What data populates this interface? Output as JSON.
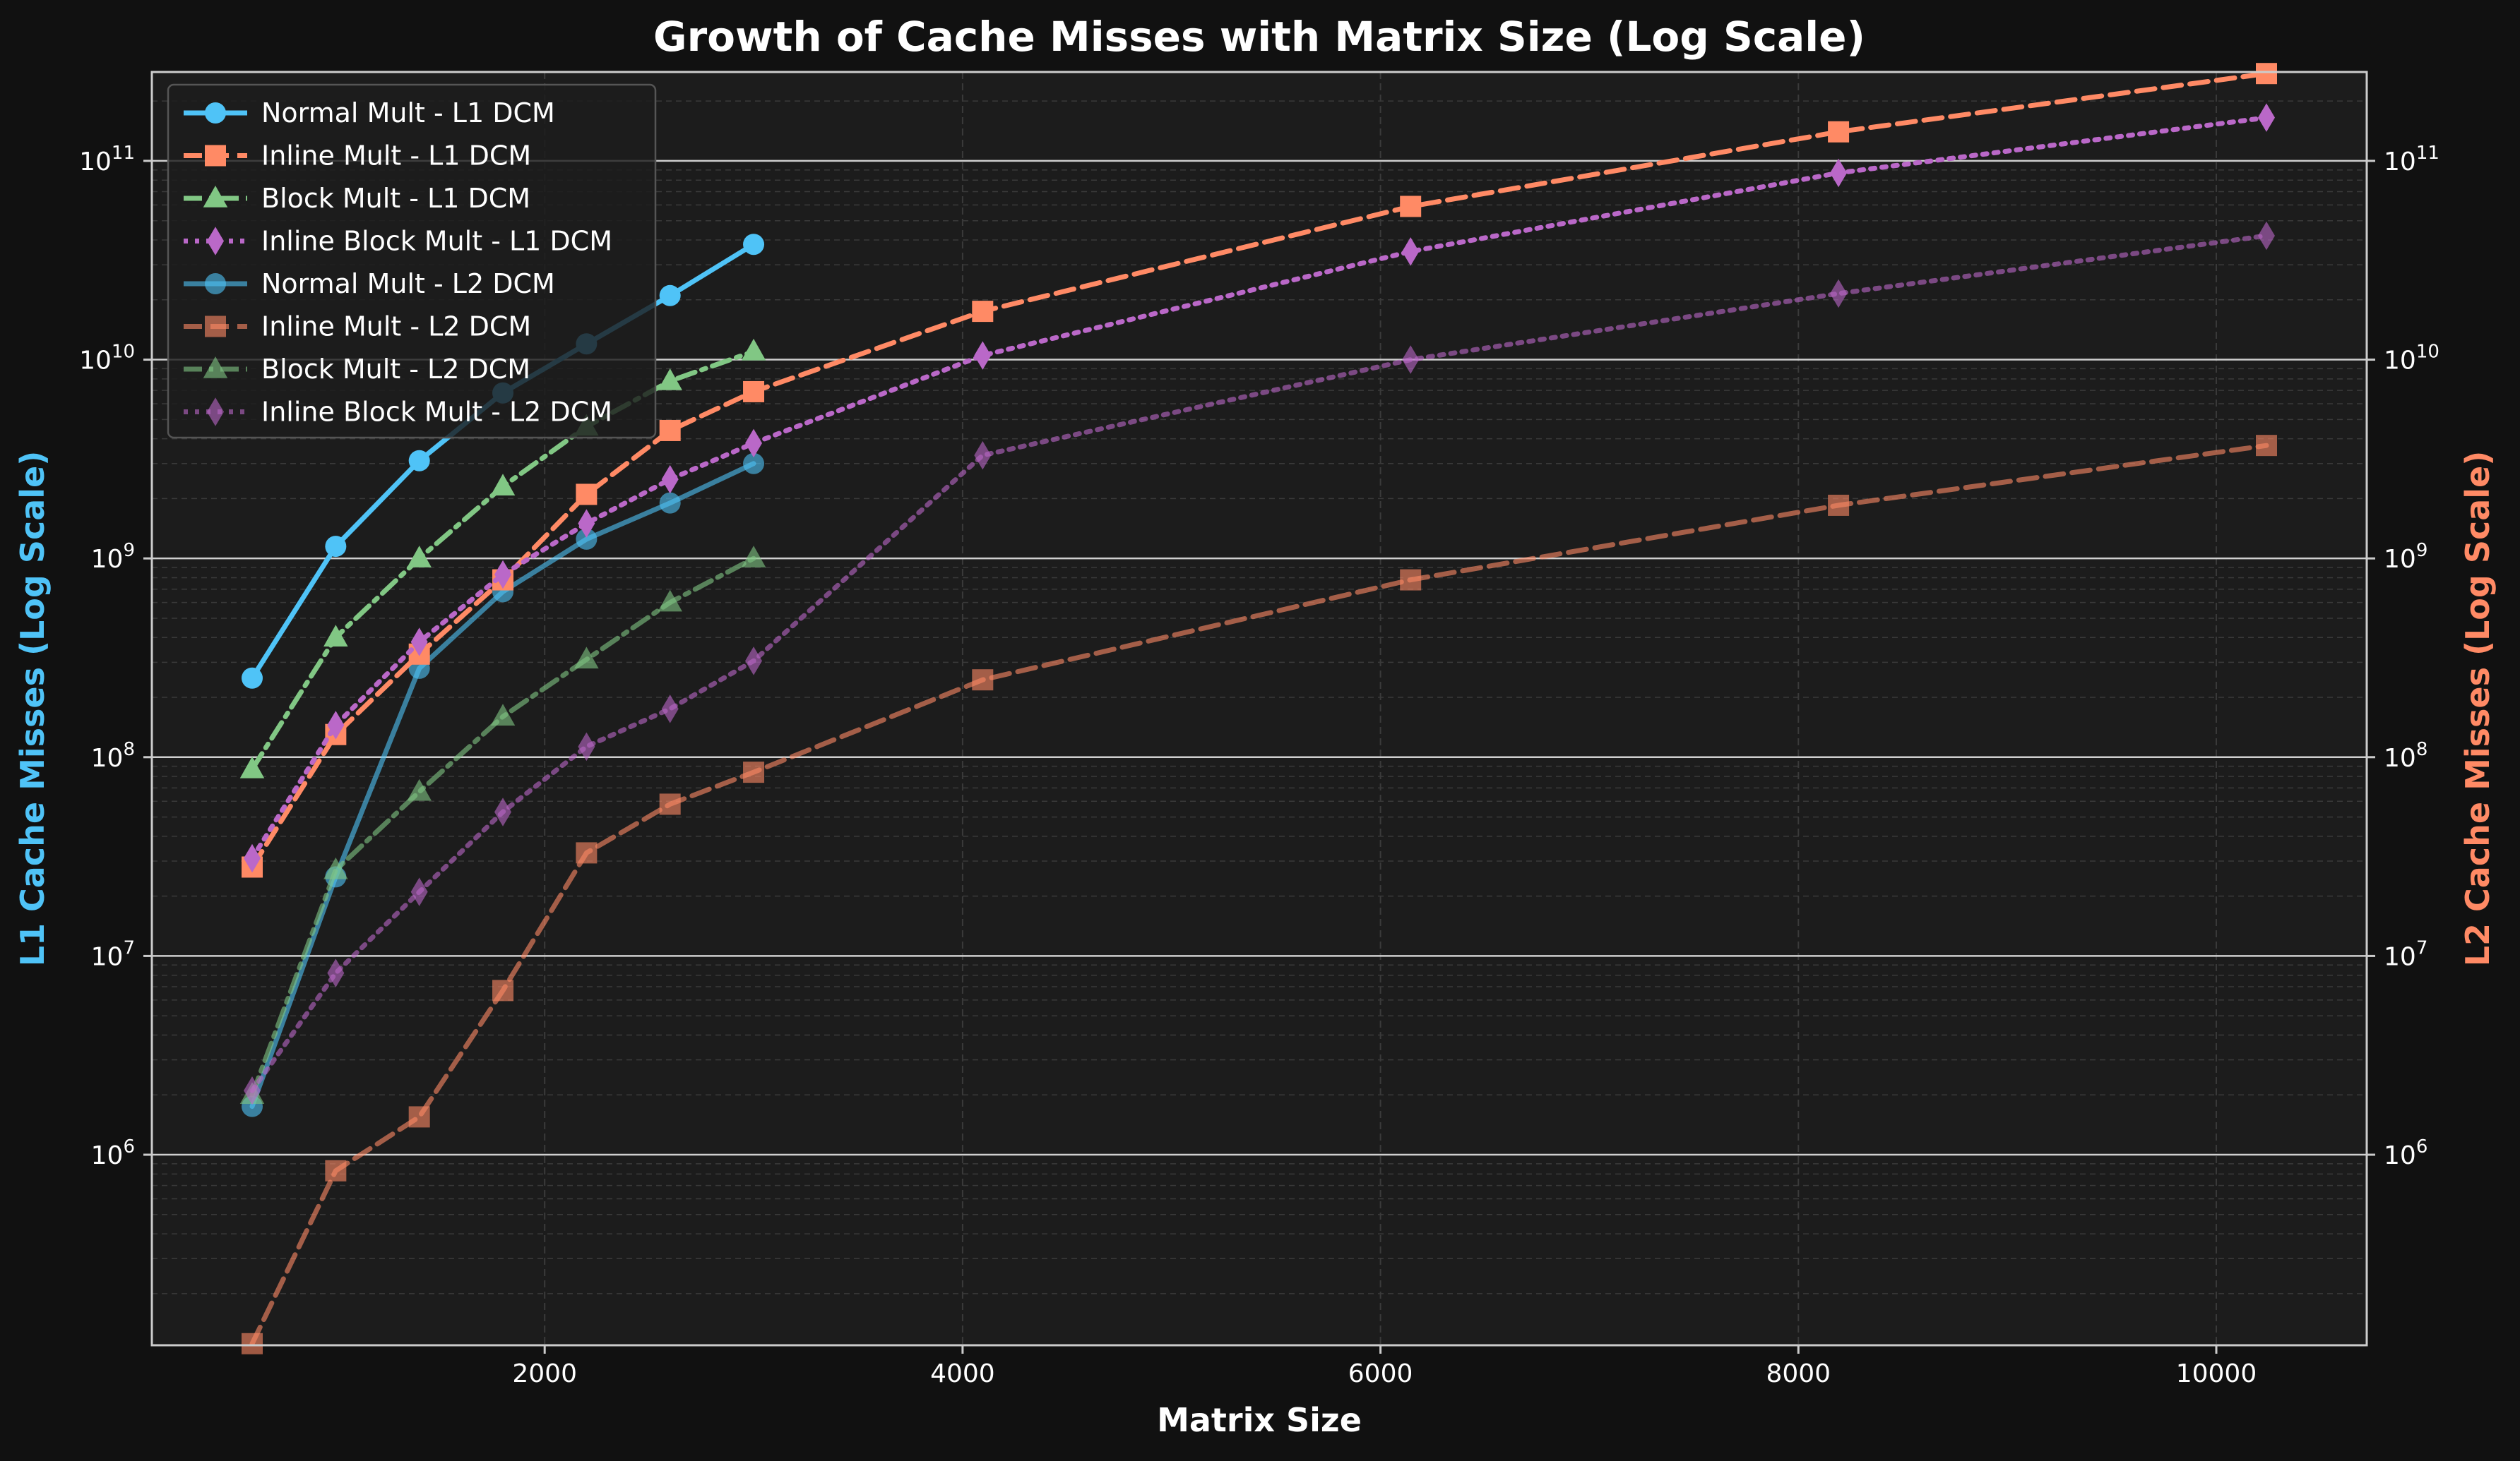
{
  "chart_data": {
    "type": "line",
    "title": "Growth of Cache Misses with Matrix Size (Log Scale)",
    "xlabel": "Matrix Size",
    "ylabel_left": "L1 Cache Misses (Log Scale)",
    "ylabel_right": "L2 Cache Misses (Log Scale)",
    "x_scale": "linear",
    "y_scale": "log",
    "xlim": [
      120,
      10720
    ],
    "ylim": [
      110000,
      280000000000
    ],
    "x_ticks": [
      2000,
      4000,
      6000,
      8000,
      10000
    ],
    "x_tick_labels": [
      "2000",
      "4000",
      "6000",
      "8000",
      "10000"
    ],
    "y_ticks": [
      1000000,
      10000000,
      100000000,
      1000000000,
      10000000000,
      100000000000
    ],
    "y_tick_base": "10",
    "y_tick_exponents": [
      "6",
      "7",
      "8",
      "9",
      "10",
      "11"
    ],
    "grid": true,
    "legend_position": "top-left",
    "colors": {
      "background": "#111111",
      "plot_background": "#1c1c1c",
      "left_axis_label": "#4fc3f7",
      "right_axis_label": "#ff8a65"
    },
    "series": [
      {
        "name": "Normal Mult - L1 DCM",
        "color": "#4fc3f7",
        "dash": "solid",
        "marker": "circle",
        "alpha": 1.0,
        "x": [
          600,
          1000,
          1400,
          1800,
          2200,
          2600,
          3000
        ],
        "y": [
          250000000,
          1150000000,
          3100000000,
          6800000000,
          12000000000,
          21000000000,
          38000000000
        ]
      },
      {
        "name": "Inline Mult - L1 DCM",
        "color": "#ff8a65",
        "dash": "dashed",
        "marker": "square",
        "alpha": 1.0,
        "x": [
          600,
          1000,
          1400,
          1800,
          2200,
          2600,
          3000,
          4096,
          6144,
          8192,
          10240
        ],
        "y": [
          28000000,
          130000000,
          330000000,
          780000000,
          2100000000,
          4400000000,
          6900000000,
          17500000000,
          59000000000,
          140000000000,
          275000000000
        ]
      },
      {
        "name": "Block Mult - L1 DCM",
        "color": "#81c784",
        "dash": "dashdot",
        "marker": "triangle",
        "alpha": 1.0,
        "x": [
          600,
          1000,
          1400,
          1800,
          2200,
          2600,
          3000
        ],
        "y": [
          87000000,
          400000000,
          1000000000,
          2300000000,
          4600000000,
          7800000000,
          11000000000
        ]
      },
      {
        "name": "Inline Block Mult - L1 DCM",
        "color": "#ba68c8",
        "dash": "dotted",
        "marker": "diamond",
        "alpha": 1.0,
        "x": [
          600,
          1000,
          1400,
          1800,
          2200,
          2600,
          3000,
          4096,
          6144,
          8192,
          10240
        ],
        "y": [
          31000000,
          145000000,
          380000000,
          830000000,
          1500000000,
          2500000000,
          3800000000,
          10500000000,
          35000000000,
          87000000000,
          165000000000
        ]
      },
      {
        "name": "Normal Mult - L2 DCM",
        "color": "#4fc3f7",
        "dash": "solid",
        "marker": "circle",
        "alpha": 0.6,
        "x": [
          600,
          1000,
          1400,
          1800,
          2200,
          2600,
          3000
        ],
        "y": [
          1750000,
          25000000,
          280000000,
          680000000,
          1250000000,
          1900000000,
          3000000000
        ]
      },
      {
        "name": "Inline Mult - L2 DCM",
        "color": "#ff8a65",
        "dash": "dashed",
        "marker": "square",
        "alpha": 0.6,
        "x": [
          600,
          1000,
          1400,
          1800,
          2200,
          2600,
          3000,
          4096,
          6144,
          8192,
          10240
        ],
        "y": [
          112000,
          830000,
          1550000,
          6700000,
          33000000,
          58000000,
          84000000,
          245000000,
          780000000,
          1850000000,
          3700000000
        ]
      },
      {
        "name": "Block Mult - L2 DCM",
        "color": "#81c784",
        "dash": "dashdot",
        "marker": "triangle",
        "alpha": 0.6,
        "x": [
          600,
          1000,
          1400,
          1800,
          2200,
          2600,
          3000
        ],
        "y": [
          2000000,
          27000000,
          67000000,
          160000000,
          310000000,
          600000000,
          1000000000
        ]
      },
      {
        "name": "Inline Block Mult - L2 DCM",
        "color": "#ba68c8",
        "dash": "dotted",
        "marker": "diamond",
        "alpha": 0.6,
        "x": [
          600,
          1000,
          1400,
          1800,
          2200,
          2600,
          3000,
          4096,
          6144,
          8192,
          10240
        ],
        "y": [
          2100000,
          8200000,
          21000000,
          53000000,
          113000000,
          175000000,
          305000000,
          3300000000,
          10000000000,
          21500000000,
          42000000000
        ]
      }
    ]
  }
}
